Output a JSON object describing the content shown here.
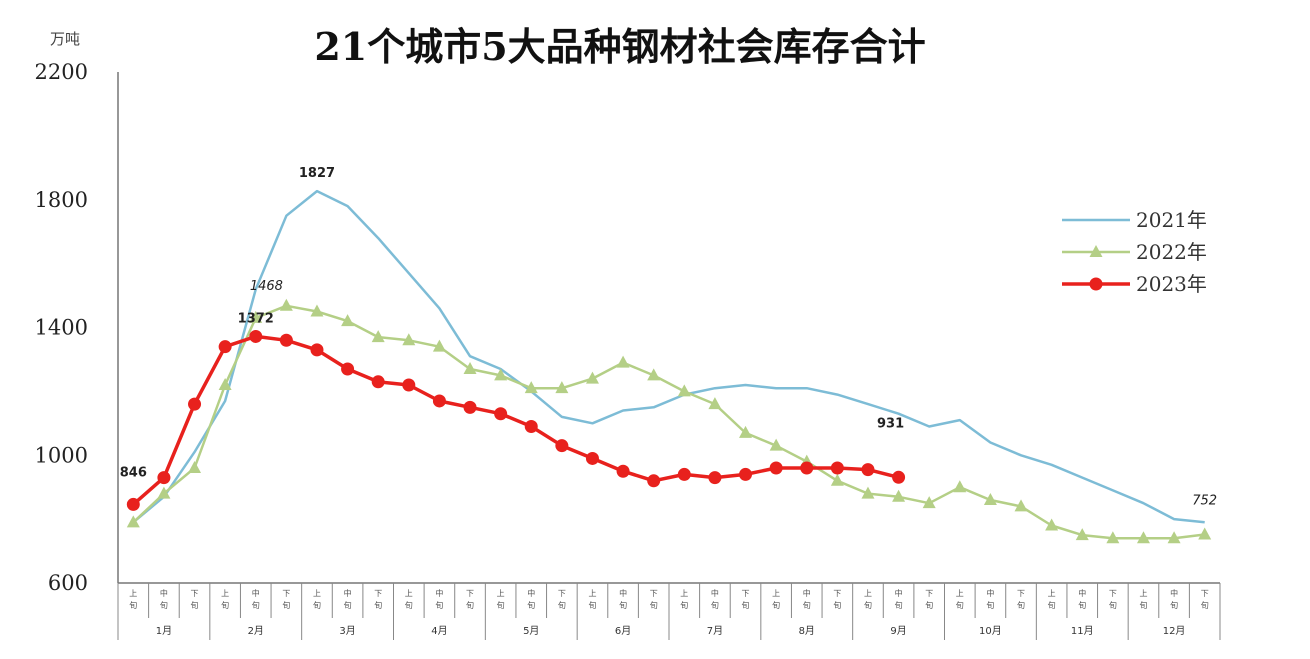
{
  "chart_data": {
    "type": "line",
    "title": "21个城市5大品种钢材社会库存合计",
    "unit": "万吨",
    "ylim": [
      600,
      2200
    ],
    "yticks": [
      "600",
      "1000",
      "1400",
      "1800",
      "2200"
    ],
    "period_labels": [
      "上",
      "中",
      "下"
    ],
    "period_suffix": "旬",
    "months": [
      "1月",
      "2月",
      "3月",
      "4月",
      "5月",
      "6月",
      "7月",
      "8月",
      "9月",
      "10月",
      "11月",
      "12月"
    ],
    "legend_position": "right",
    "series": [
      {
        "name": "2021年",
        "color": "#7dbcd6",
        "marker": "none",
        "values": [
          790,
          870,
          1010,
          1170,
          1520,
          1750,
          1827,
          1780,
          1680,
          1570,
          1460,
          1310,
          1270,
          1200,
          1120,
          1100,
          1140,
          1150,
          1190,
          1210,
          1220,
          1210,
          1210,
          1190,
          1160,
          1130,
          1090,
          1110,
          1040,
          1000,
          970,
          930,
          890,
          850,
          800,
          790
        ]
      },
      {
        "name": "2022年",
        "color": "#b4cf86",
        "marker": "triangle",
        "values": [
          790,
          880,
          960,
          1220,
          1430,
          1468,
          1450,
          1420,
          1370,
          1360,
          1340,
          1270,
          1250,
          1210,
          1210,
          1240,
          1290,
          1250,
          1200,
          1160,
          1070,
          1030,
          980,
          920,
          880,
          870,
          850,
          900,
          860,
          840,
          780,
          750,
          740,
          740,
          740,
          752
        ]
      },
      {
        "name": "2023年",
        "color": "#e8211d",
        "marker": "circle",
        "values": [
          846,
          930,
          1160,
          1340,
          1372,
          1360,
          1330,
          1270,
          1230,
          1220,
          1170,
          1150,
          1130,
          1090,
          1030,
          990,
          950,
          920,
          940,
          930,
          940,
          960,
          960,
          960,
          955,
          931
        ]
      }
    ],
    "annotations": [
      {
        "text": "1827",
        "series": "2021年",
        "index": 6,
        "style": "bold"
      },
      {
        "text": "1468",
        "series": "2022年",
        "index": 5,
        "style": "italic"
      },
      {
        "text": "1372",
        "series": "2023年",
        "index": 4,
        "style": "bold"
      },
      {
        "text": "846",
        "series": "2023年",
        "index": 0,
        "style": "bold"
      },
      {
        "text": "931",
        "series": "2023年",
        "index": 25,
        "style": "bold"
      },
      {
        "text": "752",
        "series": "2022年",
        "index": 35,
        "style": "italic"
      }
    ]
  }
}
